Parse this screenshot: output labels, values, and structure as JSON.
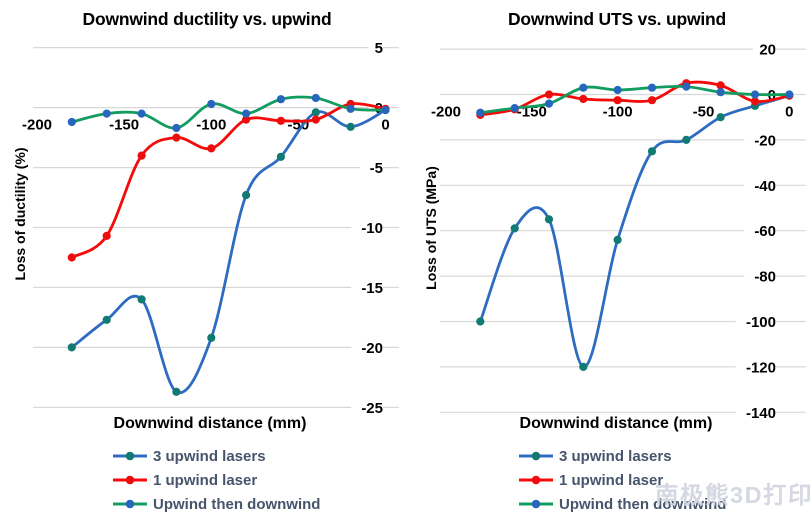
{
  "watermark": "南极熊3D打印",
  "colors": {
    "gridline": "#d8d8d8",
    "tick_text": "#000000",
    "legend_text": "#46556b",
    "background": "#ffffff",
    "watermark": "#d3d5e2"
  },
  "chart_data": [
    {
      "type": "line",
      "title": "Downwind ductility vs. upwind",
      "xlabel": "Downwind distance (mm)",
      "ylabel": "Loss of ductility (%)",
      "xlim": [
        -200,
        0
      ],
      "ylim": [
        -25,
        5
      ],
      "x_ticks": [
        -200,
        -150,
        -100,
        -50,
        0
      ],
      "y_ticks": [
        5,
        0,
        -5,
        -10,
        -15,
        -20,
        -25
      ],
      "grid": true,
      "legend_position": "bottom",
      "x": [
        -180,
        -160,
        -140,
        -120,
        -100,
        -80,
        -60,
        -40,
        -20,
        0
      ],
      "series": [
        {
          "name": "3 upwind lasers",
          "color": "#2d6cc0",
          "marker_color": "#117a72",
          "values": [
            -20,
            -17.7,
            -16,
            -23.7,
            -19.2,
            -7.3,
            -4.1,
            -0.4,
            -1.6,
            -0.2
          ]
        },
        {
          "name": "1 upwind laser",
          "color": "#f50a0a",
          "marker_color": "#ee0d0d",
          "values": [
            -12.5,
            -10.7,
            -4,
            -2.5,
            -3.4,
            -1,
            -1.1,
            -1,
            0.3,
            -0.1
          ]
        },
        {
          "name": "Upwind then downwind",
          "color": "#129c5f",
          "marker_color": "#2666bd",
          "values": [
            -1.2,
            -0.5,
            -0.5,
            -1.7,
            0.3,
            -0.5,
            0.7,
            0.8,
            -0.1,
            -0.2
          ]
        }
      ]
    },
    {
      "type": "line",
      "title": "Downwind UTS vs. upwind",
      "xlabel": "Downwind distance (mm)",
      "ylabel": "Loss of UTS (MPa)",
      "xlim": [
        -200,
        0
      ],
      "ylim": [
        -140,
        20
      ],
      "x_ticks": [
        -200,
        -150,
        -100,
        -50,
        0
      ],
      "y_ticks": [
        20,
        0,
        -20,
        -40,
        -60,
        -80,
        -100,
        -120,
        -140
      ],
      "grid": true,
      "legend_position": "bottom",
      "x": [
        -180,
        -160,
        -140,
        -120,
        -100,
        -80,
        -60,
        -40,
        -20,
        0
      ],
      "series": [
        {
          "name": "3 upwind lasers",
          "color": "#2d6cc0",
          "marker_color": "#117a72",
          "values": [
            -100,
            -59,
            -55,
            -120,
            -64,
            -25,
            -20,
            -10,
            -5,
            -0.5
          ]
        },
        {
          "name": "1 upwind laser",
          "color": "#f50a0a",
          "marker_color": "#ee0d0d",
          "values": [
            -9,
            -6.5,
            0,
            -2,
            -2.5,
            -2.5,
            5,
            4,
            -3,
            -0.5
          ]
        },
        {
          "name": "Upwind then downwind",
          "color": "#129c5f",
          "marker_color": "#2666bd",
          "values": [
            -8,
            -6,
            -4,
            3,
            2,
            3,
            3.5,
            1,
            0,
            0
          ]
        }
      ]
    }
  ]
}
